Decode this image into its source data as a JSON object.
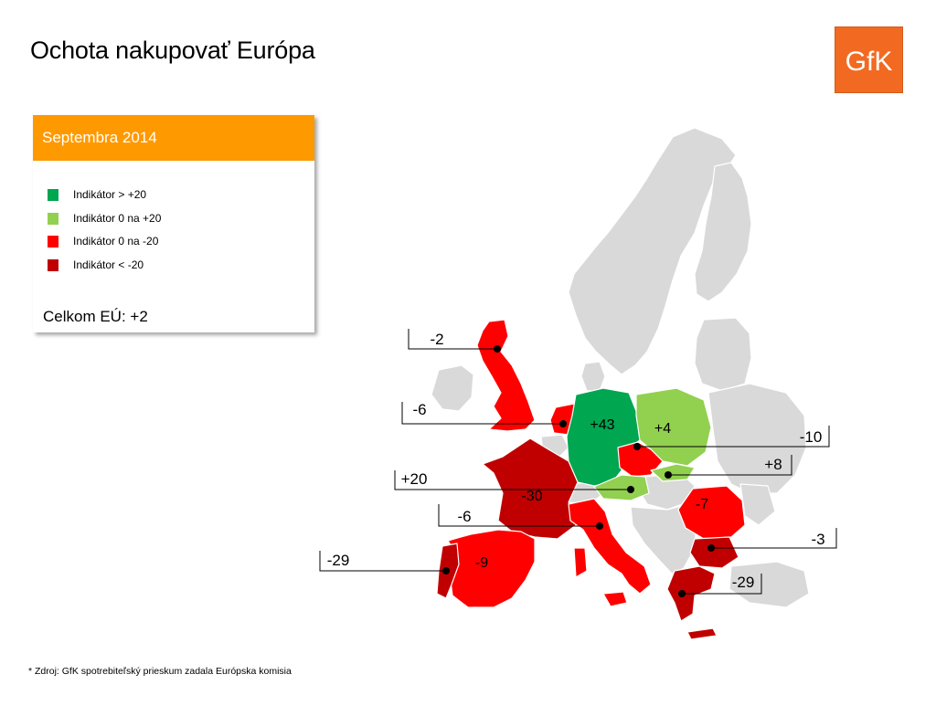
{
  "title": "Ochota nakupovať Európa",
  "logo": {
    "text": "GfK",
    "color": "#f26a21"
  },
  "legend": {
    "header": "Septembra 2014",
    "items": [
      {
        "label": "Indikátor > +20",
        "color": "#00a650"
      },
      {
        "label": "Indikátor 0 na +20",
        "color": "#92d050"
      },
      {
        "label": "Indikátor 0 na -20",
        "color": "#ff0000"
      },
      {
        "label": "Indikátor < -20",
        "color": "#c00000"
      }
    ],
    "eu_total": "Celkom EÚ:  +2"
  },
  "colors": {
    "base": "#d9d9d9",
    "strong_positive": "#00a650",
    "positive": "#92d050",
    "negative": "#ff0000",
    "strong_negative": "#c00000",
    "header": "#ff9900"
  },
  "map_values": {
    "uk": "-2",
    "netherlands": "-6",
    "germany": "+43",
    "poland": "+4",
    "czech": "-10",
    "slovakia": "+8",
    "austria": "+20",
    "france": "-30",
    "italy": "-6",
    "romania": "-7",
    "bulgaria": "-3",
    "greece": "-29",
    "portugal": "-29",
    "spain": "-9"
  },
  "footnote": "* Zdroj: GfK spotrebiteľský prieskum zadala Európska komisia"
}
